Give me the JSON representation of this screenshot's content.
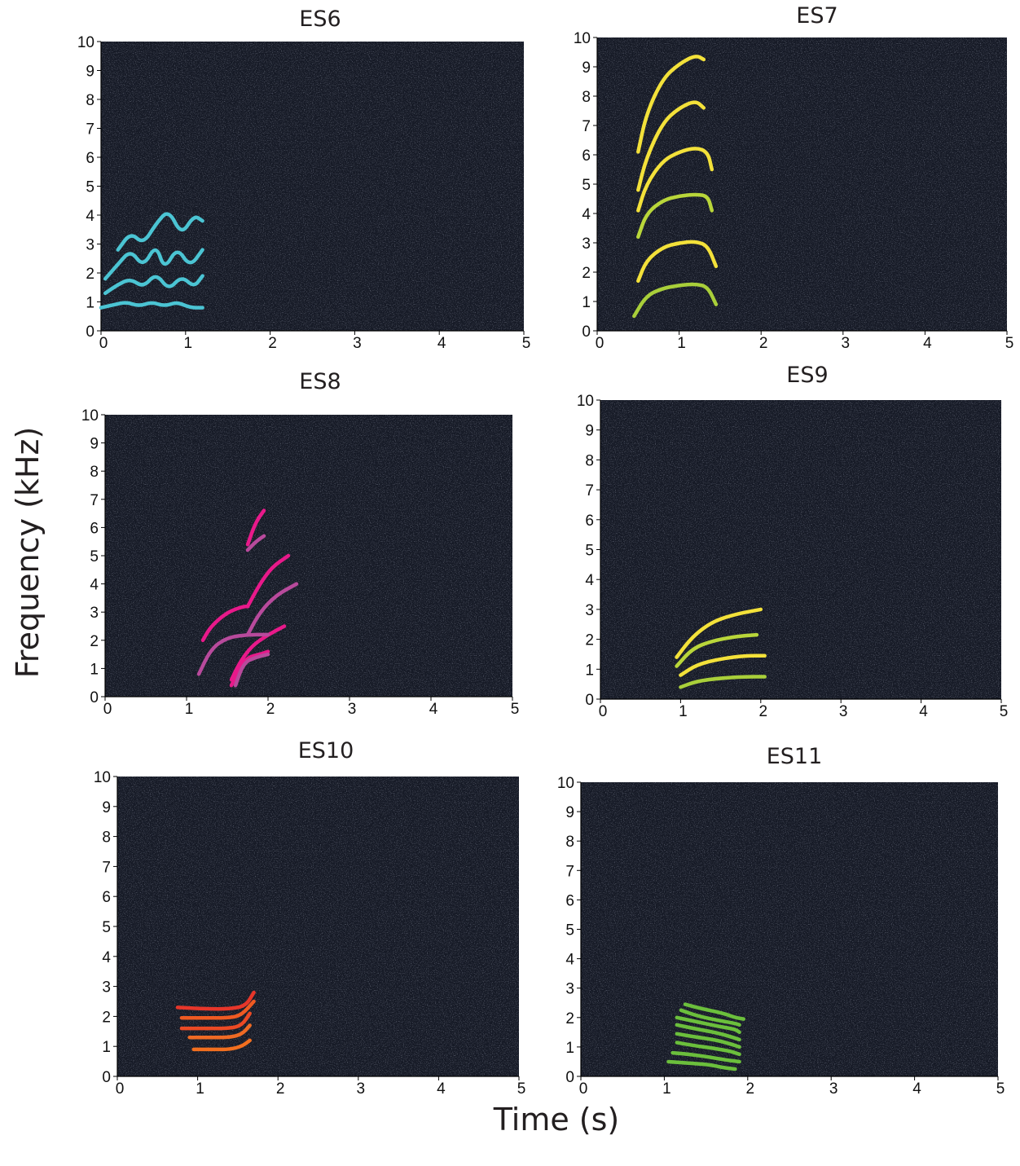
{
  "figure": {
    "ylabel": "Frequency (kHz)",
    "xlabel": "Time (s)"
  },
  "chart_data": [
    {
      "type": "spectrogram",
      "title": "ES6",
      "xlim": [
        0,
        5
      ],
      "ylim": [
        0,
        10
      ],
      "xticks": [
        "0",
        "1",
        "2",
        "3",
        "4",
        "5"
      ],
      "yticks": [
        "0",
        "1",
        "2",
        "3",
        "4",
        "5",
        "6",
        "7",
        "8",
        "9",
        "10"
      ],
      "background_color": "#161a26",
      "series": [
        {
          "color": "#4bc4d3",
          "x": [
            0.0,
            0.15,
            0.3,
            0.45,
            0.6,
            0.75,
            0.9,
            1.05,
            1.2
          ],
          "y": [
            0.8,
            0.9,
            1.0,
            0.85,
            1.0,
            0.85,
            1.0,
            0.8,
            0.8
          ]
        },
        {
          "color": "#4bc4d3",
          "x": [
            0.05,
            0.2,
            0.35,
            0.5,
            0.65,
            0.8,
            0.95,
            1.1,
            1.2
          ],
          "y": [
            1.3,
            1.6,
            1.8,
            1.5,
            2.0,
            1.4,
            1.9,
            1.5,
            1.9
          ]
        },
        {
          "color": "#4bc4d3",
          "x": [
            0.05,
            0.2,
            0.35,
            0.5,
            0.65,
            0.75,
            0.9,
            1.05,
            1.2
          ],
          "y": [
            1.8,
            2.3,
            2.8,
            2.2,
            3.0,
            2.1,
            2.9,
            2.2,
            2.8
          ]
        },
        {
          "color": "#4bc4d3",
          "x": [
            0.2,
            0.35,
            0.5,
            0.65,
            0.8,
            0.95,
            1.1,
            1.2
          ],
          "y": [
            2.8,
            3.4,
            3.0,
            3.7,
            4.2,
            3.3,
            4.0,
            3.8
          ]
        }
      ]
    },
    {
      "type": "spectrogram",
      "title": "ES7",
      "xlim": [
        0,
        5
      ],
      "ylim": [
        0,
        10
      ],
      "xticks": [
        "0",
        "1",
        "2",
        "3",
        "4",
        "5"
      ],
      "yticks": [
        "0",
        "1",
        "2",
        "3",
        "4",
        "5",
        "6",
        "7",
        "8",
        "9",
        "10"
      ],
      "background_color": "#161a26",
      "series": [
        {
          "color": "#a9cf3a",
          "x": [
            0.45,
            0.6,
            0.8,
            1.0,
            1.2,
            1.35,
            1.45
          ],
          "y": [
            0.5,
            1.2,
            1.45,
            1.55,
            1.6,
            1.5,
            0.9
          ]
        },
        {
          "color": "#f3e13a",
          "x": [
            0.5,
            0.6,
            0.8,
            1.0,
            1.2,
            1.35,
            1.45
          ],
          "y": [
            1.7,
            2.4,
            2.85,
            3.0,
            3.05,
            2.9,
            2.2
          ]
        },
        {
          "color": "#b9d63a",
          "x": [
            0.5,
            0.6,
            0.8,
            1.0,
            1.2,
            1.35,
            1.4
          ],
          "y": [
            3.2,
            4.0,
            4.45,
            4.6,
            4.65,
            4.6,
            4.1
          ]
        },
        {
          "color": "#f3e13a",
          "x": [
            0.5,
            0.6,
            0.8,
            1.0,
            1.2,
            1.35,
            1.4
          ],
          "y": [
            4.1,
            5.0,
            5.8,
            6.1,
            6.25,
            6.1,
            5.5
          ]
        },
        {
          "color": "#f3e13a",
          "x": [
            0.5,
            0.6,
            0.8,
            1.0,
            1.2,
            1.3
          ],
          "y": [
            4.8,
            5.9,
            7.1,
            7.6,
            7.85,
            7.6
          ]
        },
        {
          "color": "#f3e13a",
          "x": [
            0.5,
            0.6,
            0.8,
            1.0,
            1.2,
            1.3
          ],
          "y": [
            6.1,
            7.4,
            8.6,
            9.1,
            9.4,
            9.25
          ]
        }
      ]
    },
    {
      "type": "spectrogram",
      "title": "ES8",
      "xlim": [
        0,
        5
      ],
      "ylim": [
        0,
        10
      ],
      "xticks": [
        "0",
        "1",
        "2",
        "3",
        "4",
        "5"
      ],
      "yticks": [
        "0",
        "1",
        "2",
        "3",
        "4",
        "5",
        "6",
        "7",
        "8",
        "9",
        "10"
      ],
      "background_color": "#161a26",
      "series": [
        {
          "color": "#e8198a",
          "x": [
            1.55,
            1.65,
            1.75,
            1.9,
            2.0
          ],
          "y": [
            0.4,
            1.0,
            1.4,
            1.5,
            1.6
          ]
        },
        {
          "color": "#b84a9c",
          "x": [
            1.6,
            1.7,
            1.85,
            2.0
          ],
          "y": [
            0.4,
            1.2,
            1.4,
            1.5
          ]
        },
        {
          "color": "#e8198a",
          "x": [
            1.55,
            1.65,
            1.8,
            2.0,
            2.2
          ],
          "y": [
            0.6,
            1.2,
            1.8,
            2.2,
            2.5
          ]
        },
        {
          "color": "#b84a9c",
          "x": [
            1.15,
            1.3,
            1.5,
            1.75,
            2.0
          ],
          "y": [
            0.8,
            1.7,
            2.1,
            2.2,
            2.2
          ]
        },
        {
          "color": "#e8198a",
          "x": [
            1.2,
            1.3,
            1.5,
            1.7,
            1.75
          ],
          "y": [
            2.0,
            2.5,
            3.0,
            3.2,
            3.2
          ]
        },
        {
          "color": "#b84a9c",
          "x": [
            1.75,
            1.9,
            2.1,
            2.35
          ],
          "y": [
            2.2,
            3.0,
            3.6,
            4.0
          ]
        },
        {
          "color": "#e8198a",
          "x": [
            1.75,
            1.9,
            2.05,
            2.25
          ],
          "y": [
            3.2,
            4.0,
            4.6,
            5.0
          ]
        },
        {
          "color": "#b84a9c",
          "x": [
            1.75,
            1.85,
            1.95
          ],
          "y": [
            5.2,
            5.5,
            5.7
          ]
        },
        {
          "color": "#e8198a",
          "x": [
            1.75,
            1.85,
            1.95
          ],
          "y": [
            5.4,
            6.2,
            6.6
          ]
        }
      ]
    },
    {
      "type": "spectrogram",
      "title": "ES9",
      "xlim": [
        0,
        5
      ],
      "ylim": [
        0,
        10
      ],
      "xticks": [
        "0",
        "1",
        "2",
        "3",
        "4",
        "5"
      ],
      "yticks": [
        "0",
        "1",
        "2",
        "3",
        "4",
        "5",
        "6",
        "7",
        "8",
        "9",
        "10"
      ],
      "background_color": "#161a26",
      "series": [
        {
          "color": "#a9cf3a",
          "x": [
            1.0,
            1.2,
            1.5,
            1.8,
            2.05
          ],
          "y": [
            0.4,
            0.6,
            0.7,
            0.75,
            0.75
          ]
        },
        {
          "color": "#f3e13a",
          "x": [
            1.0,
            1.2,
            1.5,
            1.8,
            2.05
          ],
          "y": [
            0.8,
            1.15,
            1.35,
            1.45,
            1.45
          ]
        },
        {
          "color": "#b9d63a",
          "x": [
            0.95,
            1.15,
            1.4,
            1.7,
            1.95
          ],
          "y": [
            1.1,
            1.7,
            1.95,
            2.1,
            2.15
          ]
        },
        {
          "color": "#f3e13a",
          "x": [
            0.95,
            1.15,
            1.4,
            1.7,
            2.0
          ],
          "y": [
            1.4,
            2.1,
            2.6,
            2.85,
            3.0
          ]
        }
      ]
    },
    {
      "type": "spectrogram",
      "title": "ES10",
      "xlim": [
        0,
        5
      ],
      "ylim": [
        0,
        10
      ],
      "xticks": [
        "0",
        "1",
        "2",
        "3",
        "4",
        "5"
      ],
      "yticks": [
        "0",
        "1",
        "2",
        "3",
        "4",
        "5",
        "6",
        "7",
        "8",
        "9",
        "10"
      ],
      "background_color": "#161a26",
      "series": [
        {
          "color": "#f26f1f",
          "x": [
            0.95,
            1.2,
            1.4,
            1.55,
            1.65
          ],
          "y": [
            0.9,
            0.9,
            0.9,
            1.0,
            1.2
          ]
        },
        {
          "color": "#ef6a24",
          "x": [
            0.9,
            1.15,
            1.4,
            1.55,
            1.65
          ],
          "y": [
            1.3,
            1.3,
            1.3,
            1.4,
            1.7
          ]
        },
        {
          "color": "#ec4a24",
          "x": [
            0.8,
            1.1,
            1.4,
            1.55,
            1.65
          ],
          "y": [
            1.6,
            1.6,
            1.6,
            1.7,
            2.1
          ]
        },
        {
          "color": "#ef5a22",
          "x": [
            0.8,
            1.1,
            1.4,
            1.55,
            1.7
          ],
          "y": [
            1.95,
            1.95,
            1.95,
            2.05,
            2.5
          ]
        },
        {
          "color": "#e6362a",
          "x": [
            0.75,
            1.1,
            1.4,
            1.6,
            1.7
          ],
          "y": [
            2.3,
            2.25,
            2.25,
            2.35,
            2.8
          ]
        }
      ]
    },
    {
      "type": "spectrogram",
      "title": "ES11",
      "xlim": [
        0,
        5
      ],
      "ylim": [
        0,
        10
      ],
      "xticks": [
        "0",
        "1",
        "2",
        "3",
        "4",
        "5"
      ],
      "yticks": [
        "0",
        "1",
        "2",
        "3",
        "4",
        "5",
        "6",
        "7",
        "8",
        "9",
        "10"
      ],
      "background_color": "#161a26",
      "series": [
        {
          "color": "#6bbf3c",
          "x": [
            1.05,
            1.3,
            1.55,
            1.7,
            1.85
          ],
          "y": [
            0.5,
            0.45,
            0.4,
            0.3,
            0.25
          ]
        },
        {
          "color": "#6bbf3c",
          "x": [
            1.1,
            1.3,
            1.55,
            1.75,
            1.9
          ],
          "y": [
            0.8,
            0.75,
            0.65,
            0.55,
            0.5
          ]
        },
        {
          "color": "#6bbf3c",
          "x": [
            1.15,
            1.35,
            1.6,
            1.8,
            1.9
          ],
          "y": [
            1.15,
            1.05,
            0.95,
            0.85,
            0.75
          ]
        },
        {
          "color": "#6bbf3c",
          "x": [
            1.15,
            1.35,
            1.6,
            1.8,
            1.9
          ],
          "y": [
            1.45,
            1.35,
            1.25,
            1.1,
            1.0
          ]
        },
        {
          "color": "#6bbf3c",
          "x": [
            1.15,
            1.4,
            1.6,
            1.8,
            1.9
          ],
          "y": [
            1.75,
            1.6,
            1.5,
            1.35,
            1.25
          ]
        },
        {
          "color": "#6bbf3c",
          "x": [
            1.15,
            1.4,
            1.65,
            1.85,
            1.9
          ],
          "y": [
            2.0,
            1.85,
            1.7,
            1.6,
            1.5
          ]
        },
        {
          "color": "#6bbf3c",
          "x": [
            1.2,
            1.4,
            1.65,
            1.85,
            1.9
          ],
          "y": [
            2.25,
            2.05,
            1.9,
            1.8,
            1.75
          ]
        },
        {
          "color": "#6bbf3c",
          "x": [
            1.25,
            1.45,
            1.7,
            1.85,
            1.95
          ],
          "y": [
            2.45,
            2.3,
            2.15,
            2.0,
            1.95
          ]
        }
      ]
    }
  ]
}
